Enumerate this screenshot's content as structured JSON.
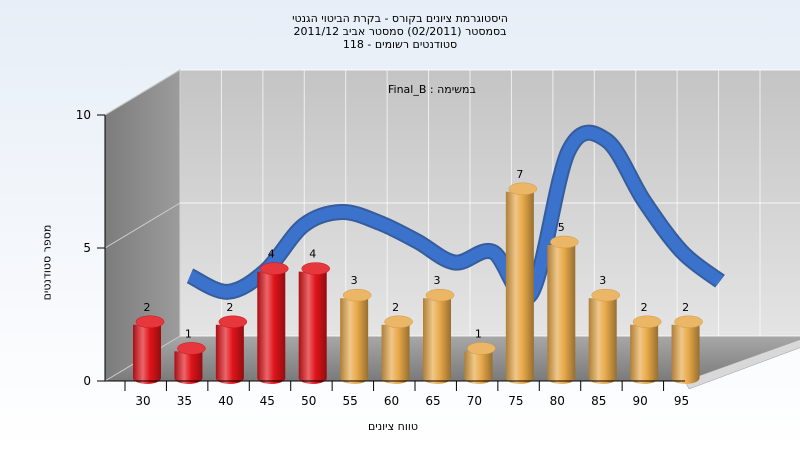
{
  "chart_data": {
    "type": "bar",
    "title_lines": [
      "היסטוגרמת ציונים בקורס - בקרת הביטוי הגנטי",
      "בסמסטר  (02/2011)  סמסטר אביב 2011/12",
      "סטודנטים רשומים - 118"
    ],
    "subtitle": "במשימה : Final_B",
    "xlabel": "טווח ציונים",
    "ylabel": "מספר סטודנטים",
    "ylim": [
      0,
      10
    ],
    "y_ticks": [
      0,
      5,
      10
    ],
    "x_tick_labels": [
      "30",
      "35",
      "40",
      "45",
      "50",
      "55",
      "60",
      "65",
      "70",
      "75",
      "80",
      "85",
      "90",
      "95"
    ],
    "values": [
      2,
      1,
      2,
      4,
      4,
      3,
      2,
      3,
      1,
      7,
      5,
      3,
      2,
      2
    ],
    "bar_colors": [
      "#e0141a",
      "#e0141a",
      "#e0141a",
      "#e0141a",
      "#e0141a",
      "#e8a94a",
      "#e8a94a",
      "#e8a94a",
      "#e8a94a",
      "#e8a94a",
      "#e8a94a",
      "#e8a94a",
      "#e8a94a",
      "#e8a94a"
    ],
    "curve_color": "#3a72cc",
    "curve_values": [
      2.9,
      2.3,
      3.1,
      4.8,
      5.3,
      4.9,
      4.2,
      3.4,
      3.8,
      2.2,
      7.6,
      8.0,
      5.7,
      3.8,
      2.7
    ],
    "grid": true,
    "legend": "none"
  }
}
